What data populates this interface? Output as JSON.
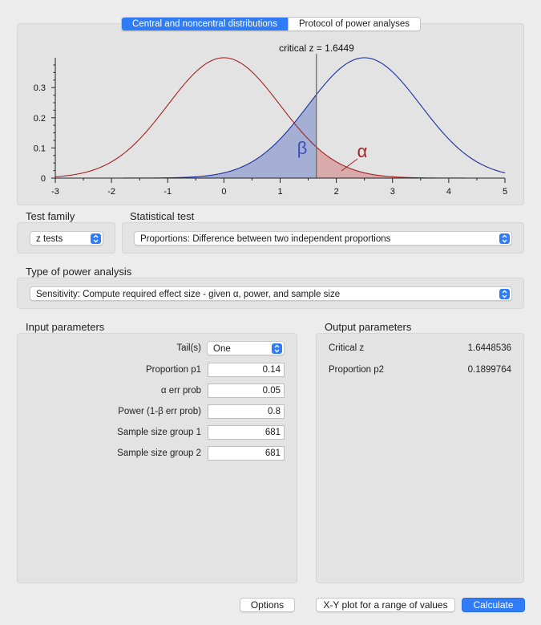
{
  "tabs": {
    "active": "Central and noncentral distributions",
    "inactive": "Protocol of power analyses"
  },
  "plot": {
    "critical_label": "critical z = 1.6449",
    "beta_symbol": "β",
    "alpha_symbol": "α",
    "critical_z": 1.6449,
    "noncentrality": 2.5,
    "x_ticks": [
      "-3",
      "-2",
      "-1",
      "0",
      "1",
      "2",
      "3",
      "4",
      "5"
    ],
    "y_ticks": [
      "0",
      "0.1",
      "0.2",
      "0.3"
    ],
    "xlim": [
      -3,
      5
    ],
    "ylim": [
      0,
      0.4
    ],
    "colors": {
      "central": "#a32222",
      "noncentral": "#1b2fa0",
      "beta_fill": "#9aa5d0",
      "alpha_fill": "#d7a3a3",
      "crit_line": "#666666"
    }
  },
  "test_family": {
    "label": "Test family",
    "value": "z tests"
  },
  "statistical_test": {
    "label": "Statistical test",
    "value": "Proportions: Difference between two independent proportions"
  },
  "power_analysis": {
    "label": "Type of power analysis",
    "value": "Sensitivity: Compute required effect size - given α, power, and sample size"
  },
  "input": {
    "title": "Input parameters",
    "tails_label": "Tail(s)",
    "tails_value": "One",
    "p1_label": "Proportion p1",
    "p1_value": "0.14",
    "alpha_label": "α err prob",
    "alpha_value": "0.05",
    "power_label": "Power (1-β err prob)",
    "power_value": "0.8",
    "n1_label": "Sample size group 1",
    "n1_value": "681",
    "n2_label": "Sample size group 2",
    "n2_value": "681"
  },
  "output": {
    "title": "Output parameters",
    "crit_label": "Critical z",
    "crit_value": "1.6448536",
    "p2_label": "Proportion p2",
    "p2_value": "0.1899764"
  },
  "buttons": {
    "options": "Options",
    "xy_plot": "X-Y plot for a range of values",
    "calculate": "Calculate"
  }
}
